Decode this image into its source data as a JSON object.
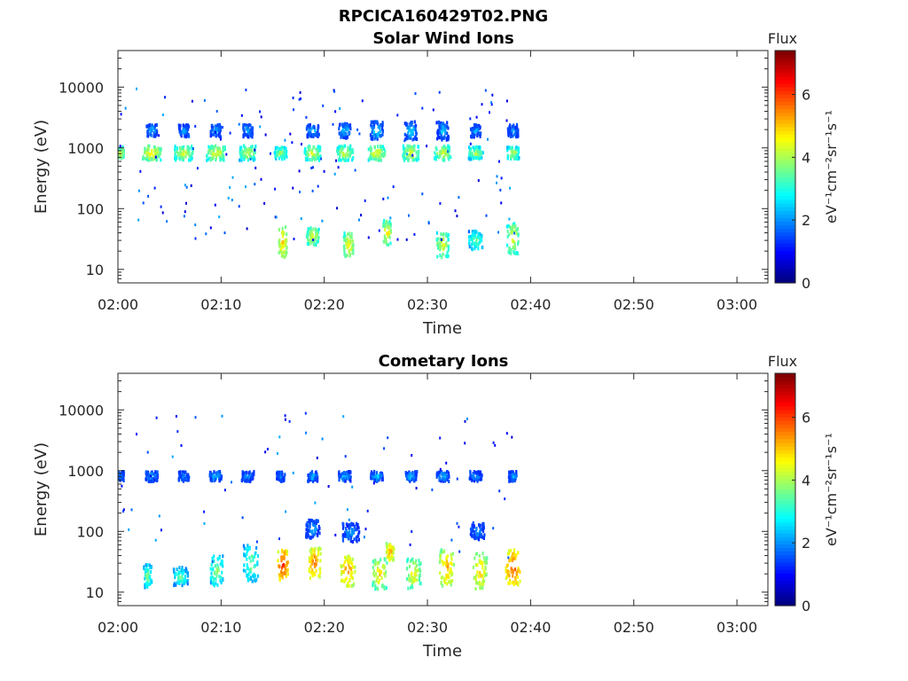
{
  "figure_title": "RPCICA160429T02.PNG",
  "chart_data": [
    {
      "type": "heatmap",
      "title": "Solar Wind Ions",
      "xlabel": "Time",
      "ylabel": "Energy (eV)",
      "y_scale": "log",
      "ylim": [
        6,
        40000
      ],
      "xlim": [
        "02:00",
        "03:03"
      ],
      "x_ticks": [
        "02:00",
        "02:10",
        "02:20",
        "02:30",
        "02:40",
        "02:50",
        "03:00"
      ],
      "y_ticks": [
        "10",
        "100",
        "1000",
        "10000"
      ],
      "colorbar": {
        "title": "Flux",
        "label": "eV⁻¹cm⁻²sr⁻¹s⁻¹",
        "range": [
          0,
          7.4
        ],
        "ticks": [
          "0",
          "2",
          "4",
          "6"
        ],
        "colormap": "jet"
      },
      "data_extent": [
        "02:00",
        "02:40"
      ],
      "scan_times": [
        0.2,
        3.2,
        6.3,
        9.4,
        12.5,
        15.7,
        18.8,
        21.9,
        25.0,
        28.3,
        31.4,
        34.6,
        38.2
      ],
      "clusters": [
        {
          "t": 0.2,
          "e": 820,
          "flux": 4.6,
          "dt": 0.3,
          "de": 0.1
        },
        {
          "t": 3.2,
          "e": 820,
          "flux": 4.8,
          "dt": 0.9,
          "de": 0.12
        },
        {
          "t": 6.3,
          "e": 820,
          "flux": 4.5,
          "dt": 0.9,
          "de": 0.12
        },
        {
          "t": 9.4,
          "e": 820,
          "flux": 4.6,
          "dt": 0.9,
          "de": 0.12
        },
        {
          "t": 12.5,
          "e": 820,
          "flux": 4.4,
          "dt": 0.8,
          "de": 0.12
        },
        {
          "t": 15.7,
          "e": 820,
          "flux": 4.2,
          "dt": 0.6,
          "de": 0.1
        },
        {
          "t": 18.8,
          "e": 820,
          "flux": 4.5,
          "dt": 0.8,
          "de": 0.12
        },
        {
          "t": 21.9,
          "e": 820,
          "flux": 4.4,
          "dt": 0.8,
          "de": 0.12
        },
        {
          "t": 25.0,
          "e": 820,
          "flux": 4.7,
          "dt": 0.8,
          "de": 0.12
        },
        {
          "t": 28.3,
          "e": 820,
          "flux": 4.6,
          "dt": 0.8,
          "de": 0.12
        },
        {
          "t": 31.4,
          "e": 820,
          "flux": 4.5,
          "dt": 0.8,
          "de": 0.12
        },
        {
          "t": 34.6,
          "e": 820,
          "flux": 4.2,
          "dt": 0.7,
          "de": 0.1
        },
        {
          "t": 38.2,
          "e": 820,
          "flux": 4.3,
          "dt": 0.6,
          "de": 0.1
        },
        {
          "t": 3.2,
          "e": 1900,
          "flux": 2.6,
          "dt": 0.5,
          "de": 0.1
        },
        {
          "t": 6.3,
          "e": 1900,
          "flux": 2.5,
          "dt": 0.5,
          "de": 0.1
        },
        {
          "t": 9.4,
          "e": 1900,
          "flux": 2.5,
          "dt": 0.5,
          "de": 0.1
        },
        {
          "t": 12.5,
          "e": 1900,
          "flux": 2.6,
          "dt": 0.5,
          "de": 0.1
        },
        {
          "t": 18.8,
          "e": 1900,
          "flux": 2.6,
          "dt": 0.6,
          "de": 0.1
        },
        {
          "t": 21.9,
          "e": 1900,
          "flux": 2.7,
          "dt": 0.6,
          "de": 0.12
        },
        {
          "t": 25.0,
          "e": 1900,
          "flux": 2.8,
          "dt": 0.6,
          "de": 0.15
        },
        {
          "t": 28.3,
          "e": 1900,
          "flux": 2.7,
          "dt": 0.6,
          "de": 0.15
        },
        {
          "t": 31.4,
          "e": 1900,
          "flux": 2.6,
          "dt": 0.6,
          "de": 0.15
        },
        {
          "t": 34.6,
          "e": 1900,
          "flux": 2.4,
          "dt": 0.5,
          "de": 0.1
        },
        {
          "t": 38.2,
          "e": 1900,
          "flux": 2.5,
          "dt": 0.5,
          "de": 0.1
        },
        {
          "t": 15.9,
          "e": 28,
          "flux": 5.2,
          "dt": 0.4,
          "de": 0.25
        },
        {
          "t": 18.8,
          "e": 35,
          "flux": 4.6,
          "dt": 0.6,
          "de": 0.15
        },
        {
          "t": 22.3,
          "e": 25,
          "flux": 4.8,
          "dt": 0.5,
          "de": 0.2
        },
        {
          "t": 26.0,
          "e": 40,
          "flux": 4.9,
          "dt": 0.4,
          "de": 0.2
        },
        {
          "t": 31.4,
          "e": 25,
          "flux": 4.6,
          "dt": 0.6,
          "de": 0.2
        },
        {
          "t": 34.6,
          "e": 30,
          "flux": 3.8,
          "dt": 0.7,
          "de": 0.15
        },
        {
          "t": 38.2,
          "e": 32,
          "flux": 4.6,
          "dt": 0.6,
          "de": 0.25
        }
      ]
    },
    {
      "type": "heatmap",
      "title": "Cometary Ions",
      "xlabel": "Time",
      "ylabel": "Energy (eV)",
      "y_scale": "log",
      "ylim": [
        6,
        40000
      ],
      "xlim": [
        "02:00",
        "03:03"
      ],
      "x_ticks": [
        "02:00",
        "02:10",
        "02:20",
        "02:30",
        "02:40",
        "02:50",
        "03:00"
      ],
      "y_ticks": [
        "10",
        "100",
        "1000",
        "10000"
      ],
      "colorbar": {
        "title": "Flux",
        "label": "eV⁻¹cm⁻²sr⁻¹s⁻¹",
        "range": [
          0,
          7.4
        ],
        "ticks": [
          "0",
          "2",
          "4",
          "6"
        ],
        "colormap": "jet"
      },
      "data_extent": [
        "02:00",
        "02:40"
      ],
      "scan_times": [
        0.2,
        3.2,
        6.3,
        9.4,
        12.5,
        15.7,
        18.8,
        21.9,
        25.0,
        28.3,
        31.4,
        34.6,
        38.2
      ],
      "clusters": [
        {
          "t": 0.2,
          "e": 800,
          "flux": 2.5,
          "dt": 0.3,
          "de": 0.08
        },
        {
          "t": 3.2,
          "e": 800,
          "flux": 2.6,
          "dt": 0.6,
          "de": 0.08
        },
        {
          "t": 6.3,
          "e": 800,
          "flux": 2.4,
          "dt": 0.5,
          "de": 0.08
        },
        {
          "t": 9.4,
          "e": 800,
          "flux": 2.6,
          "dt": 0.6,
          "de": 0.08
        },
        {
          "t": 12.5,
          "e": 800,
          "flux": 2.5,
          "dt": 0.6,
          "de": 0.08
        },
        {
          "t": 15.7,
          "e": 800,
          "flux": 2.4,
          "dt": 0.4,
          "de": 0.08
        },
        {
          "t": 18.8,
          "e": 800,
          "flux": 2.6,
          "dt": 0.5,
          "de": 0.08
        },
        {
          "t": 21.9,
          "e": 800,
          "flux": 2.7,
          "dt": 0.6,
          "de": 0.08
        },
        {
          "t": 25.0,
          "e": 800,
          "flux": 2.7,
          "dt": 0.6,
          "de": 0.08
        },
        {
          "t": 28.3,
          "e": 800,
          "flux": 2.6,
          "dt": 0.6,
          "de": 0.08
        },
        {
          "t": 31.4,
          "e": 800,
          "flux": 2.6,
          "dt": 0.6,
          "de": 0.08
        },
        {
          "t": 34.6,
          "e": 800,
          "flux": 2.4,
          "dt": 0.6,
          "de": 0.08
        },
        {
          "t": 38.2,
          "e": 800,
          "flux": 2.6,
          "dt": 0.4,
          "de": 0.08
        },
        {
          "t": 2.8,
          "e": 18,
          "flux": 3.8,
          "dt": 0.4,
          "de": 0.2
        },
        {
          "t": 6.0,
          "e": 18,
          "flux": 3.6,
          "dt": 0.7,
          "de": 0.15
        },
        {
          "t": 9.5,
          "e": 22,
          "flux": 4.0,
          "dt": 0.6,
          "de": 0.25
        },
        {
          "t": 12.8,
          "e": 30,
          "flux": 3.8,
          "dt": 0.7,
          "de": 0.3
        },
        {
          "t": 15.9,
          "e": 28,
          "flux": 6.3,
          "dt": 0.5,
          "de": 0.25
        },
        {
          "t": 19.0,
          "e": 30,
          "flux": 5.8,
          "dt": 0.6,
          "de": 0.25
        },
        {
          "t": 22.2,
          "e": 22,
          "flux": 5.6,
          "dt": 0.7,
          "de": 0.25
        },
        {
          "t": 25.3,
          "e": 20,
          "flux": 5.0,
          "dt": 0.7,
          "de": 0.25
        },
        {
          "t": 26.3,
          "e": 45,
          "flux": 5.5,
          "dt": 0.4,
          "de": 0.15
        },
        {
          "t": 28.6,
          "e": 20,
          "flux": 4.8,
          "dt": 0.7,
          "de": 0.25
        },
        {
          "t": 31.8,
          "e": 25,
          "flux": 5.4,
          "dt": 0.7,
          "de": 0.3
        },
        {
          "t": 35.0,
          "e": 22,
          "flux": 5.2,
          "dt": 0.7,
          "de": 0.3
        },
        {
          "t": 38.2,
          "e": 25,
          "flux": 6.0,
          "dt": 0.7,
          "de": 0.3
        },
        {
          "t": 18.8,
          "e": 110,
          "flux": 2.5,
          "dt": 0.7,
          "de": 0.15
        },
        {
          "t": 22.5,
          "e": 95,
          "flux": 2.4,
          "dt": 0.8,
          "de": 0.15
        },
        {
          "t": 34.8,
          "e": 100,
          "flux": 2.3,
          "dt": 0.7,
          "de": 0.15
        }
      ]
    }
  ]
}
